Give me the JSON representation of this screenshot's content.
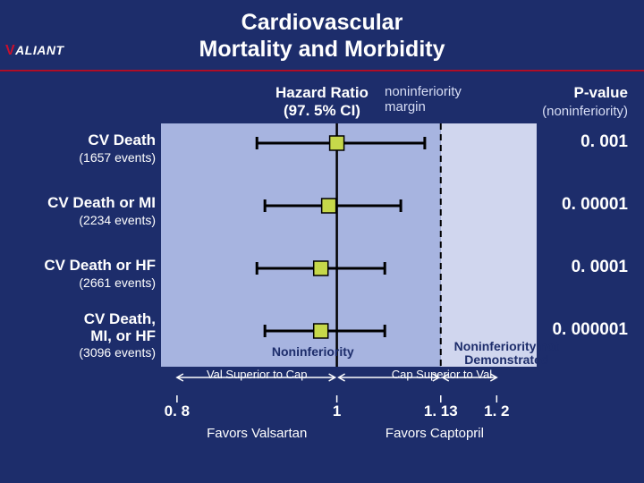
{
  "title_line1": "Cardiovascular",
  "title_line2": "Mortality and Morbidity",
  "logo_prefix": "V",
  "logo_rest": "ALIANT",
  "header_hr_line1": "Hazard Ratio",
  "header_hr_line2": "(97. 5% CI)",
  "header_ni_line1": "noninferiority",
  "header_ni_line2": "margin",
  "header_p_line1": "P-value",
  "header_p_line2": "(noninferiority)",
  "forest": {
    "type": "forest-plot",
    "xlim": [
      0.78,
      1.25
    ],
    "ticks": [
      0.8,
      1.0,
      1.13,
      1.2
    ],
    "tick_labels": [
      "0. 8",
      "1",
      "1. 13",
      "1. 2"
    ],
    "ni_margin": 1.13,
    "ref_line": 1.0,
    "background_left": "#a7b4e0",
    "background_right": "#d0d6ee",
    "ref_line_color": "#000000",
    "ni_line_color": "#000000",
    "ci_color": "#000000",
    "marker_fill": "#c6d84a",
    "marker_stroke": "#000000",
    "marker_size": 16,
    "rows": [
      {
        "label": "CV Death",
        "sub": "(1657 events)",
        "point": 1.0,
        "ci_lo": 0.9,
        "ci_hi": 1.11,
        "p": "0. 001"
      },
      {
        "label": "CV Death or MI",
        "sub": "(2234 events)",
        "point": 0.99,
        "ci_lo": 0.91,
        "ci_hi": 1.08,
        "p": "0. 00001"
      },
      {
        "label": "CV Death or HF",
        "sub": "(2661 events)",
        "point": 0.98,
        "ci_lo": 0.9,
        "ci_hi": 1.06,
        "p": "0. 0001"
      },
      {
        "label": "CV Death, MI, or HF",
        "sub": "(3096 events)",
        "point": 0.98,
        "ci_lo": 0.91,
        "ci_hi": 1.06,
        "p": "0. 000001"
      }
    ],
    "region_noninf": "Noninferiority",
    "region_notdem_l1": "Noninferiority not",
    "region_notdem_l2": "Demonstrated",
    "superior_left": "Val Superior to Cap",
    "superior_right": "Cap Superior to Val",
    "favors_left": "Favors Valsartan",
    "favors_right": "Favors Captopril"
  }
}
